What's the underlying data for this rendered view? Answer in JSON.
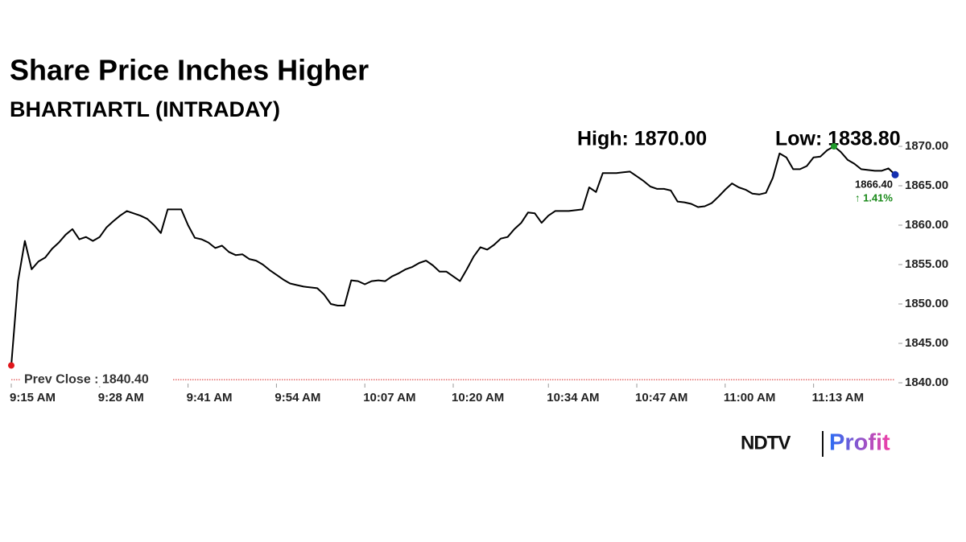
{
  "chart_data": {
    "type": "line",
    "title": "Share Price Inches Higher",
    "subtitle": "BHARTIARTL (INTRADAY)",
    "high": {
      "value": 1870,
      "label": "High: 1870.00"
    },
    "low": "Low: 1838.80",
    "last": {
      "value": 1866.4,
      "label": "1866.40"
    },
    "change": "↑ 1.41%",
    "prev_close": {
      "value": 1840.4,
      "label": "Prev Close : 1840.40"
    },
    "color": "#000000",
    "x": [
      "9:15 AM",
      "9:16 AM",
      "9:17 AM",
      "9:18 AM",
      "9:19 AM",
      "9:20 AM",
      "9:21 AM",
      "9:22 AM",
      "9:23 AM",
      "9:24 AM",
      "9:25 AM",
      "9:26 AM",
      "9:27 AM",
      "9:28 AM",
      "9:29 AM",
      "9:30 AM",
      "9:31 AM",
      "9:32 AM",
      "9:33 AM",
      "9:34 AM",
      "9:35 AM",
      "9:36 AM",
      "9:37 AM",
      "9:38 AM",
      "9:39 AM",
      "9:40 AM",
      "9:41 AM",
      "9:42 AM",
      "9:43 AM",
      "9:44 AM",
      "9:45 AM",
      "9:46 AM",
      "9:47 AM",
      "9:48 AM",
      "9:49 AM",
      "9:50 AM",
      "9:51 AM",
      "9:52 AM",
      "9:53 AM",
      "9:54 AM",
      "9:55 AM",
      "9:56 AM",
      "9:57 AM",
      "9:58 AM",
      "9:59 AM",
      "10:00 AM",
      "10:01 AM",
      "10:02 AM",
      "10:03 AM",
      "10:04 AM",
      "10:05 AM",
      "10:06 AM",
      "10:07 AM",
      "10:08 AM",
      "10:09 AM",
      "10:10 AM",
      "10:11 AM",
      "10:12 AM",
      "10:13 AM",
      "10:14 AM",
      "10:15 AM",
      "10:16 AM",
      "10:17 AM",
      "10:18 AM",
      "10:19 AM",
      "10:20 AM",
      "10:21 AM",
      "10:22 AM",
      "10:23 AM",
      "10:24 AM",
      "10:25 AM",
      "10:26 AM",
      "10:27 AM",
      "10:28 AM",
      "10:29 AM",
      "10:30 AM",
      "10:31 AM",
      "10:32 AM",
      "10:33 AM",
      "10:34 AM",
      "10:35 AM",
      "10:36 AM",
      "10:37 AM",
      "10:38 AM",
      "10:39 AM",
      "10:40 AM",
      "10:41 AM",
      "10:42 AM",
      "10:43 AM",
      "10:44 AM",
      "10:45 AM",
      "10:46 AM",
      "10:47 AM",
      "10:48 AM",
      "10:49 AM",
      "10:50 AM",
      "10:51 AM",
      "10:52 AM",
      "10:53 AM",
      "10:54 AM",
      "10:55 AM",
      "10:56 AM",
      "10:57 AM",
      "10:58 AM",
      "10:59 AM",
      "11:00 AM",
      "11:01 AM",
      "11:02 AM",
      "11:03 AM",
      "11:04 AM",
      "11:05 AM",
      "11:06 AM",
      "11:07 AM",
      "11:08 AM",
      "11:09 AM",
      "11:10 AM",
      "11:11 AM",
      "11:12 AM",
      "11:13 AM",
      "11:14 AM",
      "11:15 AM",
      "11:16 AM",
      "11:17 AM",
      "11:18 AM",
      "11:19 AM",
      "11:20 AM",
      "11:21 AM",
      "11:22 AM",
      "11:23 AM",
      "11:24 AM",
      "11:25 AM"
    ],
    "values": [
      1842.2,
      1852.9,
      1858,
      1854.4,
      1855.4,
      1855.9,
      1857,
      1857.8,
      1858.8,
      1859.5,
      1858.2,
      1858.5,
      1858,
      1858.5,
      1859.7,
      1860.5,
      1861.2,
      1861.8,
      1861.5,
      1861.2,
      1860.8,
      1860,
      1859,
      1862,
      1862,
      1862,
      1860,
      1858.4,
      1858.2,
      1857.8,
      1857.1,
      1857.4,
      1856.6,
      1856.2,
      1856.3,
      1855.7,
      1855.5,
      1855,
      1854.3,
      1853.7,
      1853.1,
      1852.6,
      1852.4,
      1852.2,
      1852.1,
      1852,
      1851.2,
      1850,
      1849.8,
      1849.8,
      1853,
      1852.9,
      1852.5,
      1852.9,
      1853,
      1852.9,
      1853.5,
      1853.9,
      1854.4,
      1854.7,
      1855.2,
      1855.5,
      1854.9,
      1854.1,
      1854.1,
      1853.5,
      1852.9,
      1854.4,
      1856,
      1857.2,
      1856.9,
      1857.5,
      1858.3,
      1858.5,
      1859.5,
      1860.3,
      1861.6,
      1861.5,
      1860.3,
      1861.2,
      1861.8,
      1861.8,
      1861.8,
      1861.9,
      1862,
      1864.8,
      1864.2,
      1866.6,
      1866.6,
      1866.6,
      1866.7,
      1866.8,
      1866.2,
      1865.6,
      1864.9,
      1864.6,
      1864.6,
      1864.4,
      1863,
      1862.9,
      1862.7,
      1862.3,
      1862.4,
      1862.8,
      1863.6,
      1864.5,
      1865.3,
      1864.8,
      1864.5,
      1864,
      1863.9,
      1864.1,
      1866,
      1869.1,
      1868.6,
      1867.1,
      1867.1,
      1867.5,
      1868.6,
      1868.7,
      1869.5,
      1870,
      1869.3,
      1868.3,
      1867.8,
      1867.1,
      1867,
      1866.9,
      1866.9,
      1867.2,
      1866.4
    ],
    "xlim": [
      "9:15 AM",
      "11:25 AM"
    ],
    "xticks": [
      "9:15 AM",
      "9:28 AM",
      "9:41 AM",
      "9:54 AM",
      "10:07 AM",
      "10:20 AM",
      "10:34 AM",
      "10:47 AM",
      "11:00 AM",
      "11:13 AM"
    ],
    "ylim": [
      1840,
      1870
    ],
    "yticks": [
      {
        "value": 1840,
        "label": "1840.00"
      },
      {
        "value": 1845,
        "label": "1845.00"
      },
      {
        "value": 1850,
        "label": "1850.00"
      },
      {
        "value": 1855,
        "label": "1855.00"
      },
      {
        "value": 1860,
        "label": "1860.00"
      },
      {
        "value": 1865,
        "label": "1865.00"
      },
      {
        "value": 1870,
        "label": "1870.00"
      }
    ]
  },
  "logo": {
    "brand": "NDTV",
    "product": "Profit"
  }
}
